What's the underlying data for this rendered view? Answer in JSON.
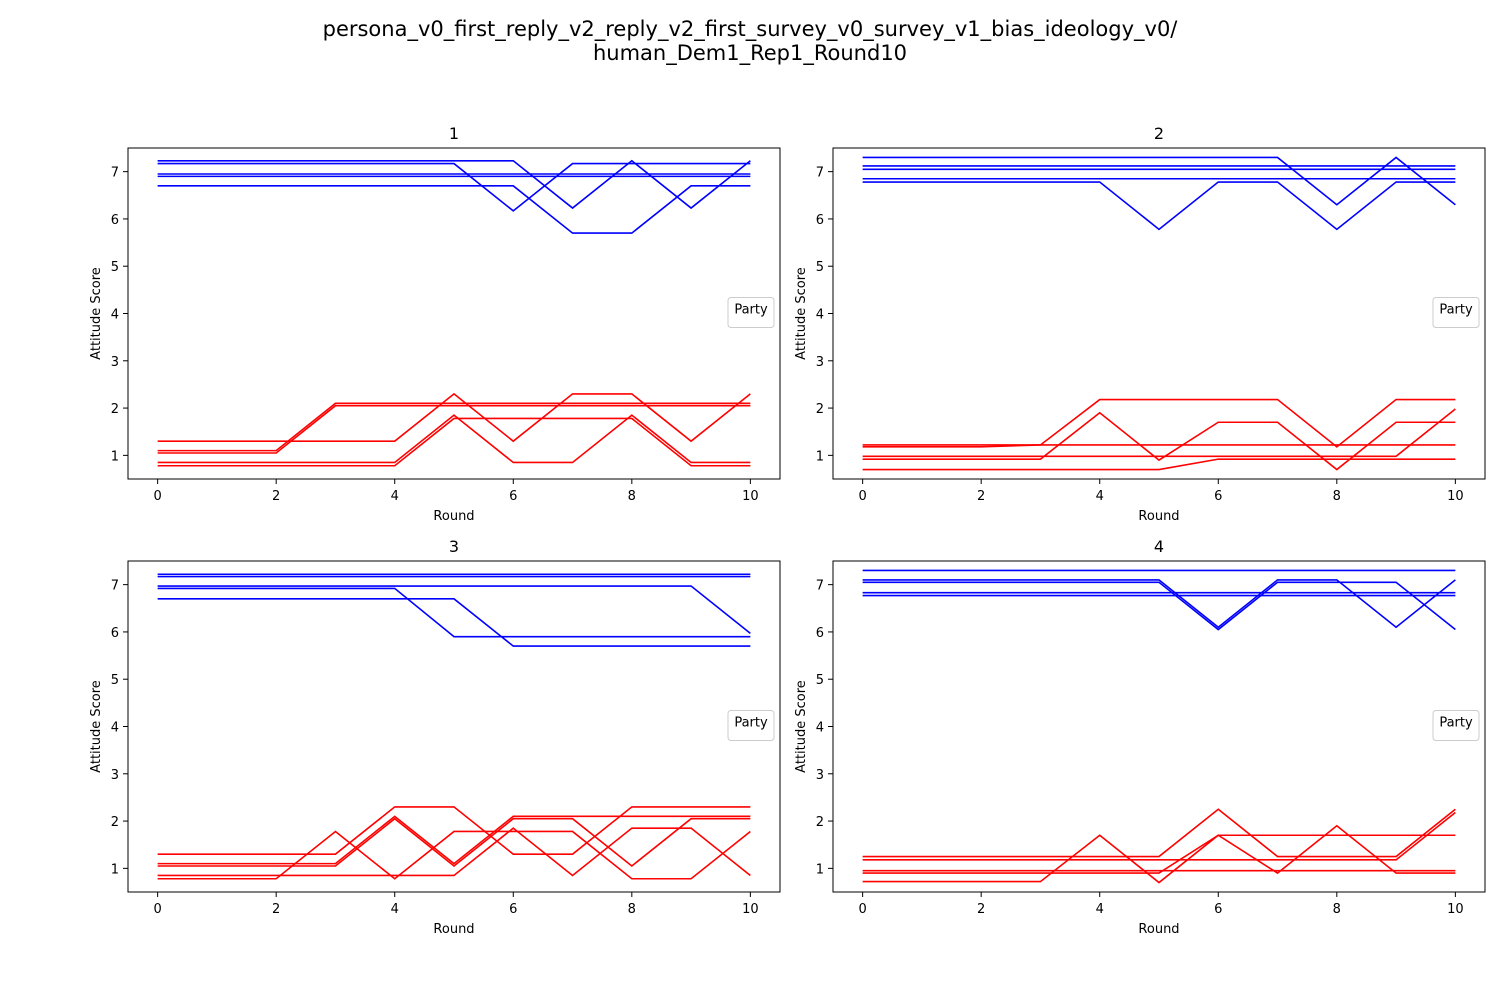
{
  "figure": {
    "title_line1": "persona_v0_first_reply_v2_reply_v2_first_survey_v0_survey_v1_bias_ideology_v0/",
    "title_line2": "human_Dem1_Rep1_Round10"
  },
  "colors": {
    "dem": "#0000ff",
    "rep": "#ff0000"
  },
  "chart_data": [
    {
      "type": "line",
      "title": "1",
      "xlabel": "Round",
      "ylabel": "Attitude Score",
      "legend_title": "Party",
      "legend_position": "center-right",
      "xlim": [
        -0.5,
        10.5
      ],
      "ylim": [
        0.5,
        7.5
      ],
      "xticks": [
        0,
        2,
        4,
        6,
        8,
        10
      ],
      "yticks": [
        1,
        2,
        3,
        4,
        5,
        6,
        7
      ],
      "x": [
        0,
        1,
        2,
        3,
        4,
        5,
        6,
        7,
        8,
        9,
        10
      ],
      "series": [
        {
          "party": "dem",
          "values": [
            7.23,
            7.23,
            7.23,
            7.23,
            7.23,
            7.23,
            7.23,
            6.23,
            7.23,
            6.23,
            7.23
          ]
        },
        {
          "party": "dem",
          "values": [
            7.17,
            7.17,
            7.17,
            7.17,
            7.17,
            7.17,
            6.17,
            7.17,
            7.17,
            7.17,
            7.17
          ]
        },
        {
          "party": "dem",
          "values": [
            6.95,
            6.95,
            6.95,
            6.95,
            6.95,
            6.95,
            6.95,
            6.95,
            6.95,
            6.95,
            6.95
          ]
        },
        {
          "party": "dem",
          "values": [
            6.9,
            6.9,
            6.9,
            6.9,
            6.9,
            6.9,
            6.9,
            6.9,
            6.9,
            6.9,
            6.9
          ]
        },
        {
          "party": "dem",
          "values": [
            6.7,
            6.7,
            6.7,
            6.7,
            6.7,
            6.7,
            6.7,
            5.7,
            5.7,
            6.7,
            6.7
          ]
        },
        {
          "party": "rep",
          "values": [
            1.3,
            1.3,
            1.3,
            1.3,
            1.3,
            2.3,
            1.3,
            2.3,
            2.3,
            1.3,
            2.3
          ]
        },
        {
          "party": "rep",
          "values": [
            1.1,
            1.1,
            1.1,
            2.1,
            2.1,
            2.1,
            2.1,
            2.1,
            2.1,
            2.1,
            2.1
          ]
        },
        {
          "party": "rep",
          "values": [
            1.05,
            1.05,
            1.05,
            2.05,
            2.05,
            2.05,
            2.05,
            2.05,
            2.05,
            2.05,
            2.05
          ]
        },
        {
          "party": "rep",
          "values": [
            0.85,
            0.85,
            0.85,
            0.85,
            0.85,
            1.85,
            0.85,
            0.85,
            1.85,
            0.85,
            0.85
          ]
        },
        {
          "party": "rep",
          "values": [
            0.78,
            0.78,
            0.78,
            0.78,
            0.78,
            1.78,
            1.78,
            1.78,
            1.78,
            0.78,
            0.78
          ]
        }
      ]
    },
    {
      "type": "line",
      "title": "2",
      "xlabel": "Round",
      "ylabel": "Attitude Score",
      "legend_title": "Party",
      "legend_position": "center-right",
      "xlim": [
        -0.5,
        10.5
      ],
      "ylim": [
        0.5,
        7.5
      ],
      "xticks": [
        0,
        2,
        4,
        6,
        8,
        10
      ],
      "yticks": [
        1,
        2,
        3,
        4,
        5,
        6,
        7
      ],
      "x": [
        0,
        1,
        2,
        3,
        4,
        5,
        6,
        7,
        8,
        9,
        10
      ],
      "series": [
        {
          "party": "dem",
          "values": [
            7.3,
            7.3,
            7.3,
            7.3,
            7.3,
            7.3,
            7.3,
            7.3,
            6.3,
            7.3,
            6.3
          ]
        },
        {
          "party": "dem",
          "values": [
            7.12,
            7.12,
            7.12,
            7.12,
            7.12,
            7.12,
            7.12,
            7.12,
            7.12,
            7.12,
            7.12
          ]
        },
        {
          "party": "dem",
          "values": [
            7.05,
            7.05,
            7.05,
            7.05,
            7.05,
            7.05,
            7.05,
            7.05,
            7.05,
            7.05,
            7.05
          ]
        },
        {
          "party": "dem",
          "values": [
            6.85,
            6.85,
            6.85,
            6.85,
            6.85,
            6.85,
            6.85,
            6.85,
            6.85,
            6.85,
            6.85
          ]
        },
        {
          "party": "dem",
          "values": [
            6.78,
            6.78,
            6.78,
            6.78,
            6.78,
            5.78,
            6.78,
            6.78,
            5.78,
            6.78,
            6.78
          ]
        },
        {
          "party": "rep",
          "values": [
            1.22,
            1.22,
            1.22,
            1.22,
            2.18,
            2.18,
            2.18,
            2.18,
            1.18,
            2.18,
            2.18
          ]
        },
        {
          "party": "rep",
          "values": [
            1.18,
            1.18,
            1.18,
            1.22,
            1.22,
            1.22,
            1.22,
            1.22,
            1.22,
            1.22,
            1.22
          ]
        },
        {
          "party": "rep",
          "values": [
            0.98,
            0.98,
            0.98,
            0.98,
            0.98,
            0.98,
            0.98,
            0.98,
            0.98,
            0.98,
            1.98
          ]
        },
        {
          "party": "rep",
          "values": [
            0.92,
            0.92,
            0.92,
            0.92,
            1.9,
            0.9,
            1.7,
            1.7,
            0.7,
            1.7,
            1.7
          ]
        },
        {
          "party": "rep",
          "values": [
            0.7,
            0.7,
            0.7,
            0.7,
            0.7,
            0.7,
            0.92,
            0.92,
            0.92,
            0.92,
            0.92
          ]
        }
      ]
    },
    {
      "type": "line",
      "title": "3",
      "xlabel": "Round",
      "ylabel": "Attitude Score",
      "legend_title": "Party",
      "legend_position": "center-right",
      "xlim": [
        -0.5,
        10.5
      ],
      "ylim": [
        0.5,
        7.5
      ],
      "xticks": [
        0,
        2,
        4,
        6,
        8,
        10
      ],
      "yticks": [
        1,
        2,
        3,
        4,
        5,
        6,
        7
      ],
      "x": [
        0,
        1,
        2,
        3,
        4,
        5,
        6,
        7,
        8,
        9,
        10
      ],
      "series": [
        {
          "party": "dem",
          "values": [
            7.22,
            7.22,
            7.22,
            7.22,
            7.22,
            7.22,
            7.22,
            7.22,
            7.22,
            7.22,
            7.22
          ]
        },
        {
          "party": "dem",
          "values": [
            7.17,
            7.17,
            7.17,
            7.17,
            7.17,
            7.17,
            7.17,
            7.17,
            7.17,
            7.17,
            7.17
          ]
        },
        {
          "party": "dem",
          "values": [
            6.97,
            6.97,
            6.97,
            6.97,
            6.97,
            6.97,
            6.97,
            6.97,
            6.97,
            6.97,
            5.97
          ]
        },
        {
          "party": "dem",
          "values": [
            6.92,
            6.92,
            6.92,
            6.92,
            6.92,
            5.9,
            5.9,
            5.9,
            5.9,
            5.9,
            5.9
          ]
        },
        {
          "party": "dem",
          "values": [
            6.7,
            6.7,
            6.7,
            6.7,
            6.7,
            6.7,
            5.7,
            5.7,
            5.7,
            5.7,
            5.7
          ]
        },
        {
          "party": "rep",
          "values": [
            1.3,
            1.3,
            1.3,
            1.3,
            2.3,
            2.3,
            1.3,
            1.3,
            2.3,
            2.3,
            2.3
          ]
        },
        {
          "party": "rep",
          "values": [
            1.1,
            1.1,
            1.1,
            1.1,
            2.1,
            1.1,
            2.1,
            2.1,
            2.1,
            2.1,
            2.1
          ]
        },
        {
          "party": "rep",
          "values": [
            1.05,
            1.05,
            1.05,
            1.05,
            2.05,
            1.05,
            2.05,
            2.05,
            1.05,
            2.05,
            2.05
          ]
        },
        {
          "party": "rep",
          "values": [
            0.85,
            0.85,
            0.85,
            0.85,
            0.85,
            0.85,
            1.85,
            0.85,
            1.85,
            1.85,
            0.85
          ]
        },
        {
          "party": "rep",
          "values": [
            0.78,
            0.78,
            0.78,
            1.78,
            0.78,
            1.78,
            1.78,
            1.78,
            0.78,
            0.78,
            1.78
          ]
        }
      ]
    },
    {
      "type": "line",
      "title": "4",
      "xlabel": "Round",
      "ylabel": "Attitude Score",
      "legend_title": "Party",
      "legend_position": "center-right",
      "xlim": [
        -0.5,
        10.5
      ],
      "ylim": [
        0.5,
        7.5
      ],
      "xticks": [
        0,
        2,
        4,
        6,
        8,
        10
      ],
      "yticks": [
        1,
        2,
        3,
        4,
        5,
        6,
        7
      ],
      "x": [
        0,
        1,
        2,
        3,
        4,
        5,
        6,
        7,
        8,
        9,
        10
      ],
      "series": [
        {
          "party": "dem",
          "values": [
            7.3,
            7.3,
            7.3,
            7.3,
            7.3,
            7.3,
            7.3,
            7.3,
            7.3,
            7.3,
            7.3
          ]
        },
        {
          "party": "dem",
          "values": [
            7.1,
            7.1,
            7.1,
            7.1,
            7.1,
            7.1,
            6.1,
            7.1,
            7.1,
            6.1,
            7.1
          ]
        },
        {
          "party": "dem",
          "values": [
            7.05,
            7.05,
            7.05,
            7.05,
            7.05,
            7.05,
            6.05,
            7.05,
            7.05,
            7.05,
            6.05
          ]
        },
        {
          "party": "dem",
          "values": [
            6.83,
            6.83,
            6.83,
            6.83,
            6.83,
            6.83,
            6.83,
            6.83,
            6.83,
            6.83,
            6.83
          ]
        },
        {
          "party": "dem",
          "values": [
            6.77,
            6.77,
            6.77,
            6.77,
            6.77,
            6.77,
            6.77,
            6.77,
            6.77,
            6.77,
            6.77
          ]
        },
        {
          "party": "rep",
          "values": [
            1.25,
            1.25,
            1.25,
            1.25,
            1.25,
            1.25,
            2.25,
            1.25,
            1.25,
            1.25,
            2.25
          ]
        },
        {
          "party": "rep",
          "values": [
            1.18,
            1.18,
            1.18,
            1.18,
            1.18,
            1.18,
            1.18,
            1.18,
            1.18,
            1.18,
            2.18
          ]
        },
        {
          "party": "rep",
          "values": [
            0.95,
            0.95,
            0.95,
            0.95,
            0.95,
            0.95,
            0.95,
            0.95,
            0.95,
            0.95,
            0.95
          ]
        },
        {
          "party": "rep",
          "values": [
            0.9,
            0.9,
            0.9,
            0.9,
            0.9,
            0.9,
            1.7,
            1.7,
            1.7,
            1.7,
            1.7
          ]
        },
        {
          "party": "rep",
          "values": [
            0.72,
            0.72,
            0.72,
            0.72,
            1.7,
            0.7,
            1.7,
            0.9,
            1.9,
            0.9,
            0.9
          ]
        }
      ]
    }
  ]
}
